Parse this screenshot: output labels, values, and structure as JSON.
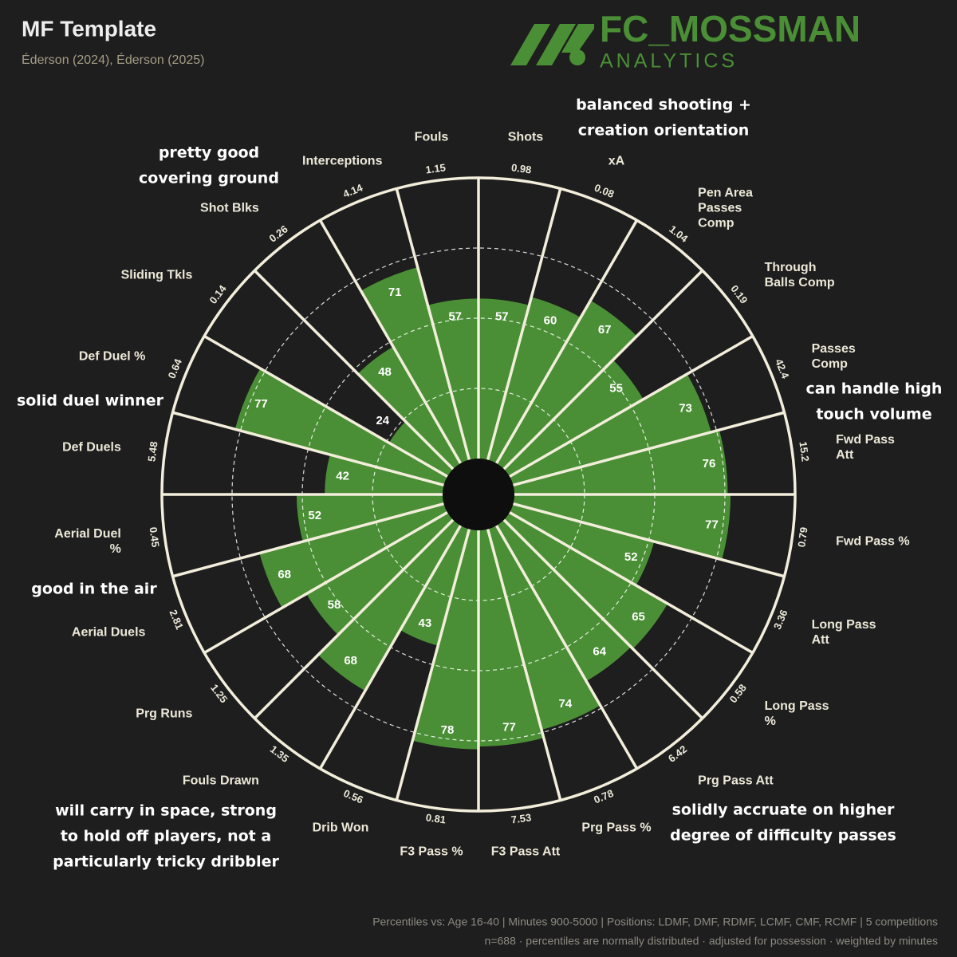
{
  "chart_data": {
    "type": "pizza",
    "title": "MF Template",
    "subtitle": "Éderson (2024), Éderson (2025)",
    "categories": [
      "Shots",
      "xA",
      "Pen Area Passes Comp",
      "Through Balls Comp",
      "Passes Comp",
      "Fwd Pass Att",
      "Fwd Pass %",
      "Long Pass Att",
      "Long Pass %",
      "Prg Pass Att",
      "Prg Pass %",
      "F3 Pass Att",
      "F3 Pass %",
      "Drib Won",
      "Fouls Drawn",
      "Prg Runs",
      "Aerial Duels",
      "Aerial Duel %",
      "Def Duels",
      "Def Duel %",
      "Sliding Tkls",
      "Shot Blks",
      "Interceptions",
      "Fouls"
    ],
    "values": [
      57,
      60,
      67,
      55,
      73,
      76,
      77,
      52,
      65,
      64,
      74,
      77,
      78,
      43,
      68,
      58,
      68,
      52,
      42,
      77,
      24,
      48,
      71,
      57
    ],
    "raw_values": [
      0.98,
      0.08,
      1.04,
      0.19,
      42.4,
      15.2,
      0.79,
      3.36,
      0.58,
      6.42,
      0.78,
      7.53,
      0.81,
      0.56,
      1.35,
      1.25,
      2.81,
      0.45,
      5.48,
      0.64,
      0.14,
      0.26,
      4.14,
      1.15
    ],
    "rlim": [
      0,
      100
    ],
    "rticks": [
      25,
      50,
      75
    ],
    "color": "#4a8f35",
    "line_color": "#f3eedb",
    "annotations": [
      [
        "balanced shooting +",
        "creation orientation"
      ],
      [
        "pretty good",
        "covering ground"
      ],
      [
        "can handle high",
        "touch volume"
      ],
      [
        "solid duel winner"
      ],
      [
        "good in the air"
      ],
      [
        "will carry in space, strong",
        "to hold off players, not a",
        "particularly tricky dribbler"
      ],
      [
        "solidly accruate on higher",
        "degree of difficulty passes"
      ]
    ]
  },
  "brand": {
    "name": "FC_MOSSMAN",
    "tagline": "ANALYTICS"
  },
  "footer": [
    "Percentiles vs: Age 16-40 | Minutes 900-5000 | Positions: LDMF, DMF, RDMF, LCMF, CMF, RCMF | 5 competitions",
    "n=688 · percentiles are normally distributed · adjusted for possession · weighted by minutes"
  ]
}
